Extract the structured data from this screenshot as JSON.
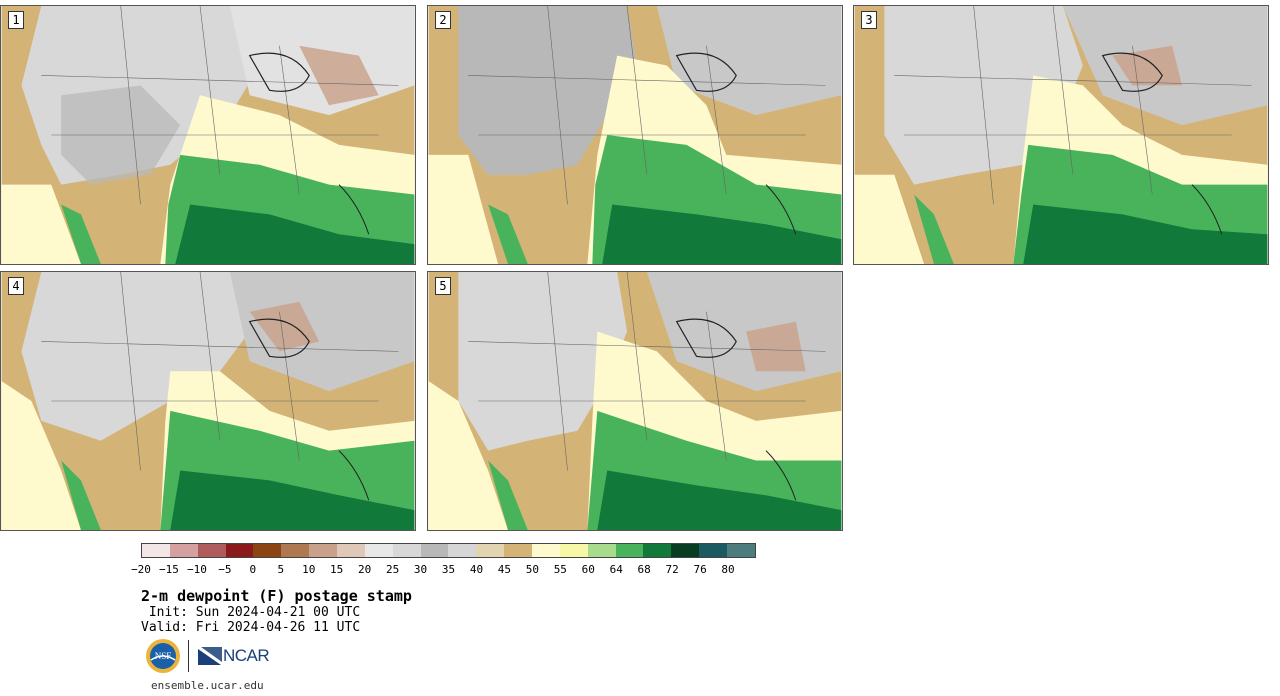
{
  "panels": [
    {
      "number": "1"
    },
    {
      "number": "2"
    },
    {
      "number": "3"
    },
    {
      "number": "4"
    },
    {
      "number": "5"
    }
  ],
  "colorbar": {
    "colors": [
      "#f3e6e6",
      "#d4a0a0",
      "#b05c5c",
      "#8b1a1a",
      "#8b4513",
      "#b07850",
      "#c9a08a",
      "#e0c8b8",
      "#e8e8e8",
      "#d8d8d8",
      "#b8b8b8",
      "#d6d6d6",
      "#e2d4b0",
      "#d4b476",
      "#fffacd",
      "#f7f7a8",
      "#a6dc8c",
      "#49b35c",
      "#117a3a",
      "#083d22",
      "#1c5a62",
      "#4c7c7c"
    ],
    "tick_labels": [
      "-20",
      "-15",
      "-10",
      "-5",
      "0",
      "5",
      "10",
      "15",
      "20",
      "25",
      "30",
      "35",
      "40",
      "45",
      "50",
      "55",
      "60",
      "64",
      "68",
      "72",
      "76",
      "80"
    ]
  },
  "title": "2-m dewpoint (F) postage stamp",
  "init": " Init: Sun 2024-04-21 00 UTC",
  "valid": "Valid: Fri 2024-04-26 11 UTC",
  "logos": {
    "nsf": "NSF",
    "ncar": "NCAR"
  },
  "site": "ensemble.ucar.edu"
}
